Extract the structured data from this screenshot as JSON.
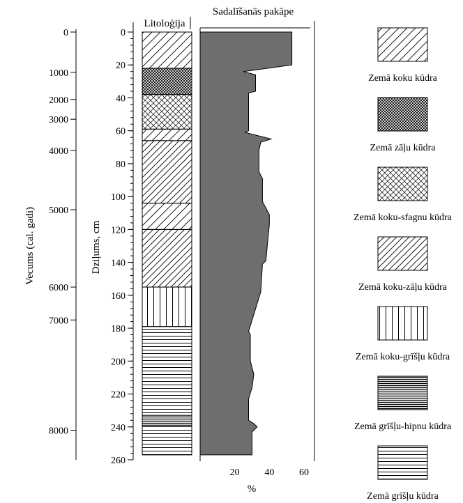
{
  "chart_data": {
    "type": "area",
    "titles": {
      "lithology": "Litoloģija",
      "decomposition": "Sadalīšanās pakāpe"
    },
    "age_axis": {
      "label": "Vecums (cal. gadi)",
      "ticks": [
        0,
        1000,
        2000,
        3000,
        4000,
        5000,
        6000,
        7000,
        8000
      ],
      "range": [
        0,
        8200
      ],
      "depth_for_tick": [
        0,
        24.5,
        41,
        53,
        72,
        108,
        155,
        175,
        242
      ]
    },
    "depth_axis": {
      "label": "Dziļums, cm",
      "ticks": [
        0,
        20,
        40,
        60,
        80,
        100,
        120,
        140,
        160,
        180,
        200,
        220,
        240,
        260
      ],
      "minor_step": 4,
      "range": [
        0,
        260
      ]
    },
    "percent_axis": {
      "label": "%",
      "ticks": [
        20,
        40,
        60
      ],
      "range": [
        0,
        65
      ]
    },
    "decomposition_series": {
      "depth": [
        0,
        20,
        24,
        26,
        36,
        37,
        60,
        61,
        65,
        67,
        72,
        85,
        89,
        103,
        111,
        117,
        127,
        139,
        141,
        158,
        182,
        184,
        200,
        208,
        216,
        223,
        236,
        238,
        240,
        243,
        257
      ],
      "value": [
        53,
        53,
        25,
        32,
        32,
        28,
        28,
        26,
        41,
        35,
        34,
        34,
        36,
        36,
        40,
        40,
        39,
        38,
        36,
        35,
        28,
        29,
        29,
        31,
        30,
        28,
        28,
        31,
        33,
        30,
        30
      ]
    },
    "lithology_layers": [
      {
        "from": 0,
        "to": 22,
        "type": "koku"
      },
      {
        "from": 22,
        "to": 38,
        "type": "zalu"
      },
      {
        "from": 38,
        "to": 59,
        "type": "koku-sfagnu"
      },
      {
        "from": 59,
        "to": 66,
        "type": "koku"
      },
      {
        "from": 66,
        "to": 104,
        "type": "koku-zalu"
      },
      {
        "from": 104,
        "to": 120,
        "type": "koku"
      },
      {
        "from": 120,
        "to": 155,
        "type": "koku-zalu"
      },
      {
        "from": 155,
        "to": 179,
        "type": "koku-grislu"
      },
      {
        "from": 179,
        "to": 233,
        "type": "grislu"
      },
      {
        "from": 233,
        "to": 239,
        "type": "grislu-hipnu"
      },
      {
        "from": 239,
        "to": 257,
        "type": "grislu"
      }
    ],
    "legend": [
      {
        "type": "koku",
        "label": "Zemā koku kūdra"
      },
      {
        "type": "zalu",
        "label": "Zemā zāļu kūdra"
      },
      {
        "type": "koku-sfagnu",
        "label": "Zemā koku-sfagnu kūdra"
      },
      {
        "type": "koku-zalu",
        "label": "Zemā koku-zāļu kūdra"
      },
      {
        "type": "koku-grislu",
        "label": "Zemā koku-grīšļu kūdra"
      },
      {
        "type": "grislu-hipnu",
        "label": "Zemā grīšļu-hipnu kūdra"
      },
      {
        "type": "grislu",
        "label": "Zemā grīšļu kūdra"
      }
    ],
    "colors": {
      "fill": "#6e6e6e",
      "line": "#000000"
    }
  }
}
